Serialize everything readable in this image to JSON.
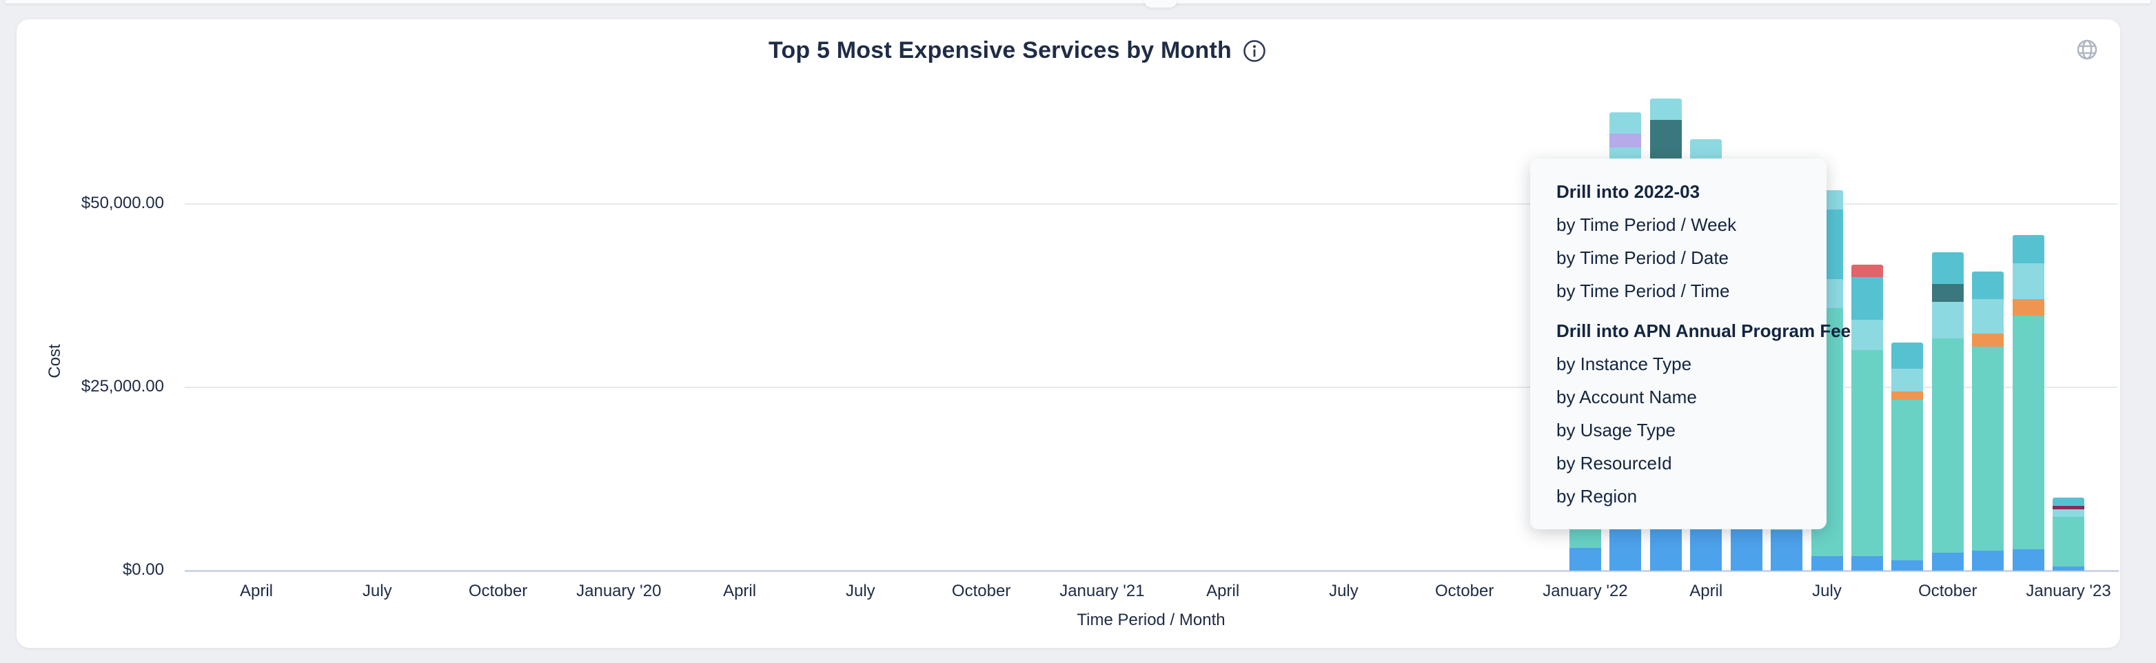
{
  "card": {
    "title": "Top 5 Most Expensive Services by Month"
  },
  "chart_data": {
    "type": "bar",
    "stacked": true,
    "title": "Top 5 Most Expensive Services by Month",
    "xlabel": "Time Period / Month",
    "ylabel": "Cost",
    "ylim": [
      0,
      68000
    ],
    "grid": true,
    "legend": "none",
    "y_ticks": [
      "$50,000.00",
      "$25,000.00",
      "$0.00"
    ],
    "x_ticks": [
      "April",
      "July",
      "October",
      "January '20",
      "April",
      "July",
      "October",
      "January '21",
      "April",
      "July",
      "October",
      "January '22",
      "April",
      "July",
      "October",
      "January '23"
    ],
    "colors": {
      "blue": "#4da2ec",
      "seafoam": "#69d2c5",
      "lightblue": "#8dd9e2",
      "cyan": "#56c2d1",
      "darkteal": "#3a787d",
      "orange": "#f0954f",
      "red": "#e0656a",
      "maroon": "#8e2a55",
      "purple": "#b6aaeb"
    },
    "bars": [
      {
        "month": "2022-01",
        "segments": [
          {
            "color": "blue",
            "value": 3100
          },
          {
            "color": "seafoam",
            "value": 14400
          }
        ]
      },
      {
        "month": "2022-02",
        "segments": [
          {
            "color": "blue",
            "value": 32000
          },
          {
            "color": "seafoam",
            "value": 18000
          },
          {
            "color": "lightblue",
            "value": 7700
          },
          {
            "color": "purple",
            "value": 1900
          },
          {
            "color": "lightblue",
            "value": 2900
          }
        ]
      },
      {
        "month": "2022-03",
        "segments": [
          {
            "color": "blue",
            "value": 30000
          },
          {
            "color": "seafoam",
            "value": 15000
          },
          {
            "color": "lightblue",
            "value": 7000
          },
          {
            "color": "darkteal",
            "value": 9500
          },
          {
            "color": "lightblue",
            "value": 2850
          }
        ]
      },
      {
        "month": "2022-04",
        "segments": [
          {
            "color": "blue",
            "value": 32000
          },
          {
            "color": "seafoam",
            "value": 20000
          },
          {
            "color": "lightblue",
            "value": 6860
          }
        ]
      },
      {
        "month": "2022-05",
        "segments": [
          {
            "color": "blue",
            "value": 6000
          },
          {
            "color": "seafoam",
            "value": 24000
          }
        ]
      },
      {
        "month": "2022-06",
        "segments": [
          {
            "color": "blue",
            "value": 5500
          },
          {
            "color": "seafoam",
            "value": 27500
          }
        ]
      },
      {
        "month": "2022-07",
        "segments": [
          {
            "color": "blue",
            "value": 2000
          },
          {
            "color": "seafoam",
            "value": 33790
          },
          {
            "color": "lightblue",
            "value": 3960
          },
          {
            "color": "cyan",
            "value": 9530
          },
          {
            "color": "lightblue",
            "value": 2630
          }
        ]
      },
      {
        "month": "2022-08",
        "segments": [
          {
            "color": "blue",
            "value": 2000
          },
          {
            "color": "seafoam",
            "value": 28040
          },
          {
            "color": "lightblue",
            "value": 4130
          },
          {
            "color": "cyan",
            "value": 5870
          },
          {
            "color": "red",
            "value": 1690
          }
        ]
      },
      {
        "month": "2022-09",
        "segments": [
          {
            "color": "blue",
            "value": 1400
          },
          {
            "color": "seafoam",
            "value": 21870
          },
          {
            "color": "orange",
            "value": 1190
          },
          {
            "color": "lightblue",
            "value": 3060
          },
          {
            "color": "cyan",
            "value": 3600
          }
        ]
      },
      {
        "month": "2022-10",
        "segments": [
          {
            "color": "blue",
            "value": 2400
          },
          {
            "color": "seafoam",
            "value": 29250
          },
          {
            "color": "lightblue",
            "value": 5040
          },
          {
            "color": "darkteal",
            "value": 2410
          },
          {
            "color": "cyan",
            "value": 4320
          }
        ]
      },
      {
        "month": "2022-11",
        "segments": [
          {
            "color": "blue",
            "value": 2700
          },
          {
            "color": "seafoam",
            "value": 27870
          },
          {
            "color": "orange",
            "value": 1800
          },
          {
            "color": "lightblue",
            "value": 4680
          },
          {
            "color": "cyan",
            "value": 3710
          }
        ]
      },
      {
        "month": "2022-12",
        "segments": [
          {
            "color": "blue",
            "value": 2900
          },
          {
            "color": "seafoam",
            "value": 31880
          },
          {
            "color": "orange",
            "value": 2270
          },
          {
            "color": "lightblue",
            "value": 4860
          },
          {
            "color": "cyan",
            "value": 3880
          }
        ]
      },
      {
        "month": "2023-01",
        "segments": [
          {
            "color": "blue",
            "value": 550
          },
          {
            "color": "seafoam",
            "value": 6750
          },
          {
            "color": "lightblue",
            "value": 1080
          },
          {
            "color": "maroon",
            "value": 500
          },
          {
            "color": "cyan",
            "value": 1080
          }
        ]
      }
    ]
  },
  "menu": {
    "items": [
      {
        "label": "Drill into 2022-03",
        "type": "header"
      },
      {
        "label": "by Time Period / Week",
        "type": "option"
      },
      {
        "label": "by Time Period / Date",
        "type": "option"
      },
      {
        "label": "by Time Period / Time",
        "type": "option"
      },
      {
        "label": "Drill into APN Annual Program Fee",
        "type": "header"
      },
      {
        "label": "by Instance Type",
        "type": "option"
      },
      {
        "label": "by Account Name",
        "type": "option"
      },
      {
        "label": "by Usage Type",
        "type": "option"
      },
      {
        "label": "by ResourceId",
        "type": "option"
      },
      {
        "label": "by Region",
        "type": "option"
      }
    ]
  }
}
